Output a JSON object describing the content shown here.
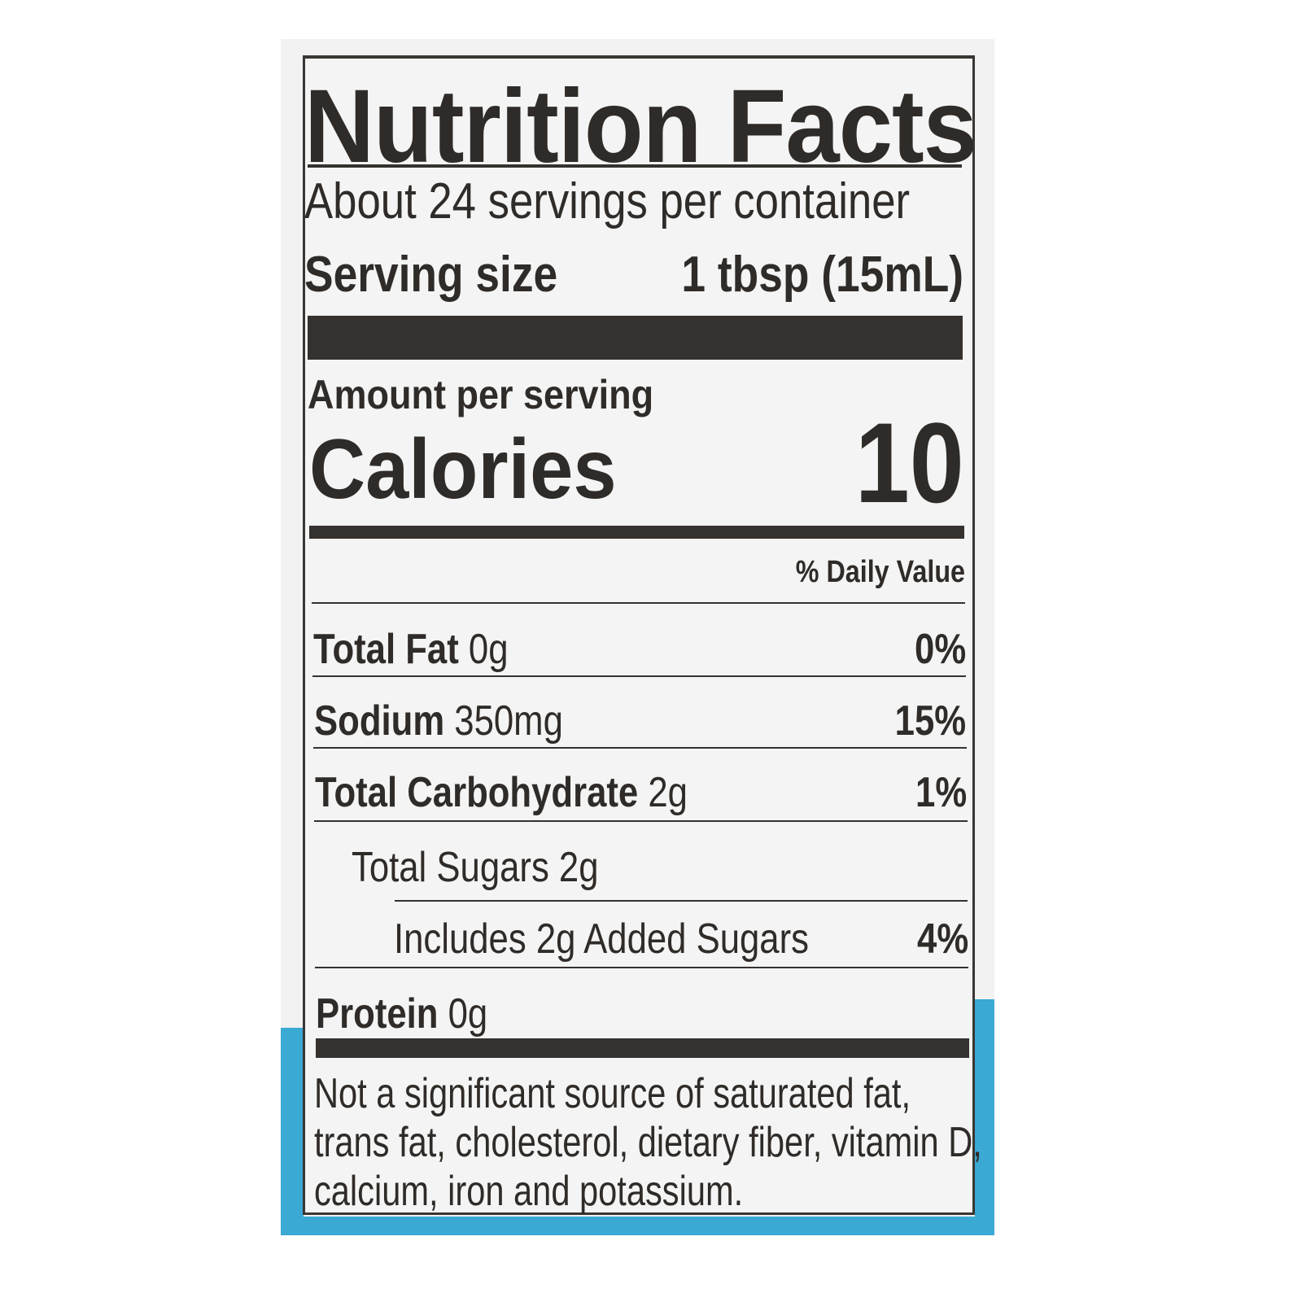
{
  "label": {
    "title": "Nutrition Facts",
    "servings_per_container": "About 24 servings per container",
    "serving_size_label": "Serving size",
    "serving_size_value": "1 tbsp (15mL)",
    "amount_per_serving": "Amount per serving",
    "calories_label": "Calories",
    "calories_value": "10",
    "daily_value_header": "% Daily Value",
    "rows": [
      {
        "name": "Total Fat",
        "amount": "0g",
        "dv": "0%"
      },
      {
        "name": "Sodium",
        "amount": "350mg",
        "dv": "15%"
      },
      {
        "name": "Total Carbohydrate",
        "amount": "2g",
        "dv": "1%"
      },
      {
        "name": "Total Sugars 2g",
        "amount": "",
        "dv": ""
      },
      {
        "name": "Includes 2g Added Sugars",
        "amount": "",
        "dv": "4%"
      },
      {
        "name": "Protein",
        "amount": "0g",
        "dv": ""
      }
    ],
    "footnote": [
      "Not a significant source of saturated fat,",
      "trans fat, cholesterol, dietary fiber, vitamin D,",
      "calcium, iron and potassium."
    ]
  },
  "colors": {
    "ink": "#2f2b28",
    "label_bg": "#f1f2f1",
    "package_blue": "#3aa9d4"
  }
}
